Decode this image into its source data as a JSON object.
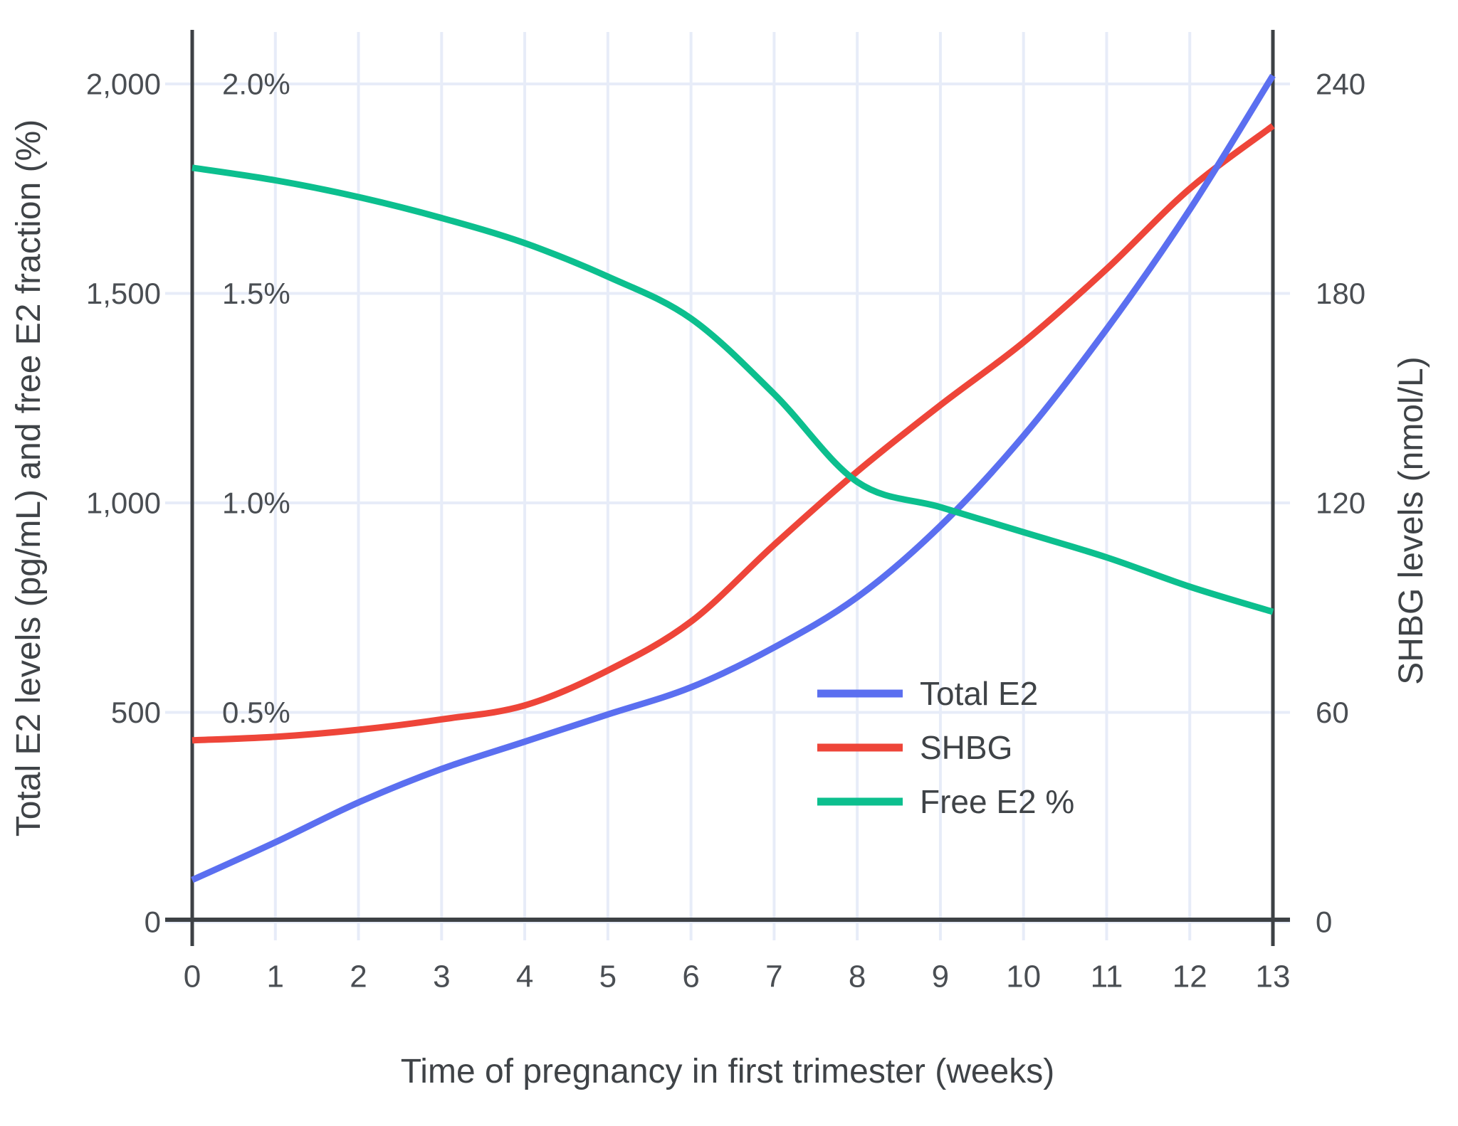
{
  "chart_data": {
    "type": "line",
    "title": "",
    "xlabel": "Time of pregnancy in first trimester (weeks)",
    "ylabel_left": "Total E2 levels (pg/mL) and free E2 fraction (%)",
    "ylabel_right": "SHBG levels (nmol/L)",
    "x": [
      0,
      1,
      2,
      3,
      4,
      5,
      6,
      7,
      8,
      9,
      10,
      11,
      12,
      13
    ],
    "x_tick_labels": [
      "0",
      "1",
      "2",
      "3",
      "4",
      "5",
      "6",
      "7",
      "8",
      "9",
      "10",
      "11",
      "12",
      "13"
    ],
    "left_axis": {
      "range": [
        0,
        2000
      ],
      "tick_values": [
        0,
        500,
        1000,
        1500,
        2000
      ],
      "tick_labels": [
        "0",
        "500",
        "1,000",
        "1,500",
        "2,000"
      ]
    },
    "left_pct_axis": {
      "range": [
        0,
        2.0
      ],
      "tick_values": [
        0.5,
        1.0,
        1.5,
        2.0
      ],
      "tick_labels": [
        "0.5%",
        "1.0%",
        "1.5%",
        "2.0%"
      ]
    },
    "right_axis": {
      "range": [
        0,
        240
      ],
      "tick_values": [
        0,
        60,
        120,
        180,
        240
      ],
      "tick_labels": [
        "0",
        "60",
        "120",
        "180",
        "240"
      ]
    },
    "grid": true,
    "legend_position": "center-right",
    "series": [
      {
        "name": "Total E2",
        "unit": "pg/mL",
        "axis": "left",
        "color": "#5b6ff0",
        "values": [
          100,
          190,
          285,
          365,
          430,
          495,
          560,
          655,
          775,
          945,
          1160,
          1415,
          1700,
          2020
        ]
      },
      {
        "name": "SHBG",
        "unit": "nmol/L",
        "axis": "right",
        "color": "#ee4539",
        "values": [
          52,
          53,
          55,
          58,
          62,
          72,
          86,
          108,
          129,
          148,
          166,
          187,
          210,
          228
        ]
      },
      {
        "name": "Free E2 %",
        "unit": "%",
        "axis": "left_pct",
        "color": "#0cbf8e",
        "values": [
          1.8,
          1.77,
          1.73,
          1.68,
          1.62,
          1.54,
          1.44,
          1.26,
          1.05,
          0.99,
          0.93,
          0.87,
          0.8,
          0.74
        ]
      }
    ]
  },
  "colors": {
    "background": "#ffffff",
    "grid": "#e7ecf8",
    "axis": "#3d4145",
    "tick_text": "#4a4e53",
    "title_text": "#3f4347"
  }
}
